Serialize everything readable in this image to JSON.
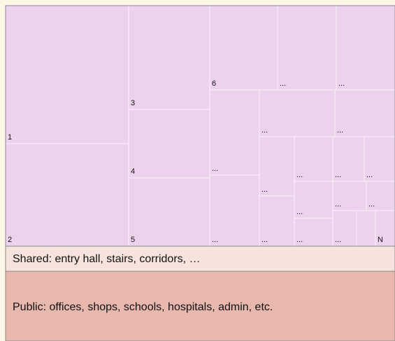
{
  "private_units": {
    "cells": [
      "1",
      "2",
      "3",
      "4",
      "5",
      "6",
      "...",
      "...",
      "...",
      "...",
      "...",
      "...",
      "...",
      "...",
      "...",
      "...",
      "...",
      "...",
      "...",
      "...",
      "...",
      "...",
      "N"
    ]
  },
  "shared": {
    "label": "Shared: entry hall, stairs, corridors, …"
  },
  "public": {
    "label": "Public: offices, shops, schools, hospitals, admin, etc."
  }
}
